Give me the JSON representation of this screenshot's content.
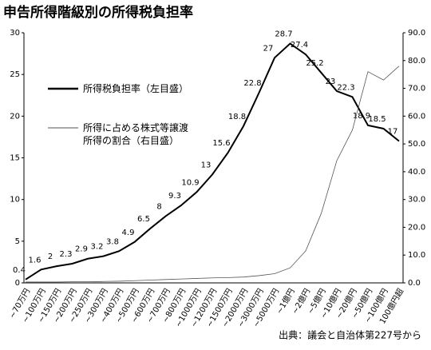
{
  "chart_data": {
    "type": "line",
    "title": "申告所得階級別の所得税負担率",
    "source": "出典：議会と自治体第227号から",
    "categories": [
      "~70万円",
      "~100万円",
      "~150万円",
      "~200万円",
      "~250万円",
      "~300万円",
      "~400万円",
      "~500万円",
      "~600万円",
      "~700万円",
      "~800万円",
      "~1000万円",
      "~1200万円",
      "~1500万円",
      "~2000万円",
      "~3000万円",
      "~5000万円",
      "~1億円",
      "~2億円",
      "~5億円",
      "~10億円",
      "~20億円",
      "~50億円",
      "~100億円",
      "100億円超"
    ],
    "series": [
      {
        "name": "所得税負担率（左目盛）",
        "color": "#000000",
        "axis": "y",
        "values": [
          0.4,
          1.6,
          2.0,
          2.3,
          2.9,
          3.2,
          3.8,
          4.9,
          6.5,
          8.0,
          9.3,
          10.9,
          13.0,
          15.6,
          18.8,
          22.8,
          27.0,
          28.7,
          27.4,
          25.2,
          23.0,
          22.3,
          18.9,
          18.5,
          17.0
        ]
      },
      {
        "name": "所得に占める株式等譲渡所得の割合（右目盛）",
        "color": "#555555",
        "axis": "y2",
        "values": [
          0.3,
          0.3,
          0.3,
          0.4,
          0.4,
          0.5,
          0.6,
          0.8,
          1.0,
          1.2,
          1.4,
          1.6,
          1.8,
          1.9,
          2.1,
          2.6,
          3.3,
          5.4,
          11.5,
          25,
          44,
          55,
          76,
          73,
          78
        ]
      }
    ],
    "ylim": [
      0,
      30
    ],
    "yticks": [
      0,
      5,
      10,
      15,
      20,
      25,
      30
    ],
    "y2lim": [
      0,
      90
    ],
    "y2ticks": [
      {
        "value": 0,
        "label": "0.0"
      },
      {
        "value": 10,
        "label": "10.0"
      },
      {
        "value": 20,
        "label": "20.0"
      },
      {
        "value": 30,
        "label": "30.0"
      },
      {
        "value": 40,
        "label": "40.0"
      },
      {
        "value": 50,
        "label": "50.0"
      },
      {
        "value": 60,
        "label": "60.0"
      },
      {
        "value": 70,
        "label": "70.0"
      },
      {
        "value": 80,
        "label": "80.0"
      },
      {
        "value": 90,
        "label": "90.0"
      }
    ],
    "grid": false
  }
}
